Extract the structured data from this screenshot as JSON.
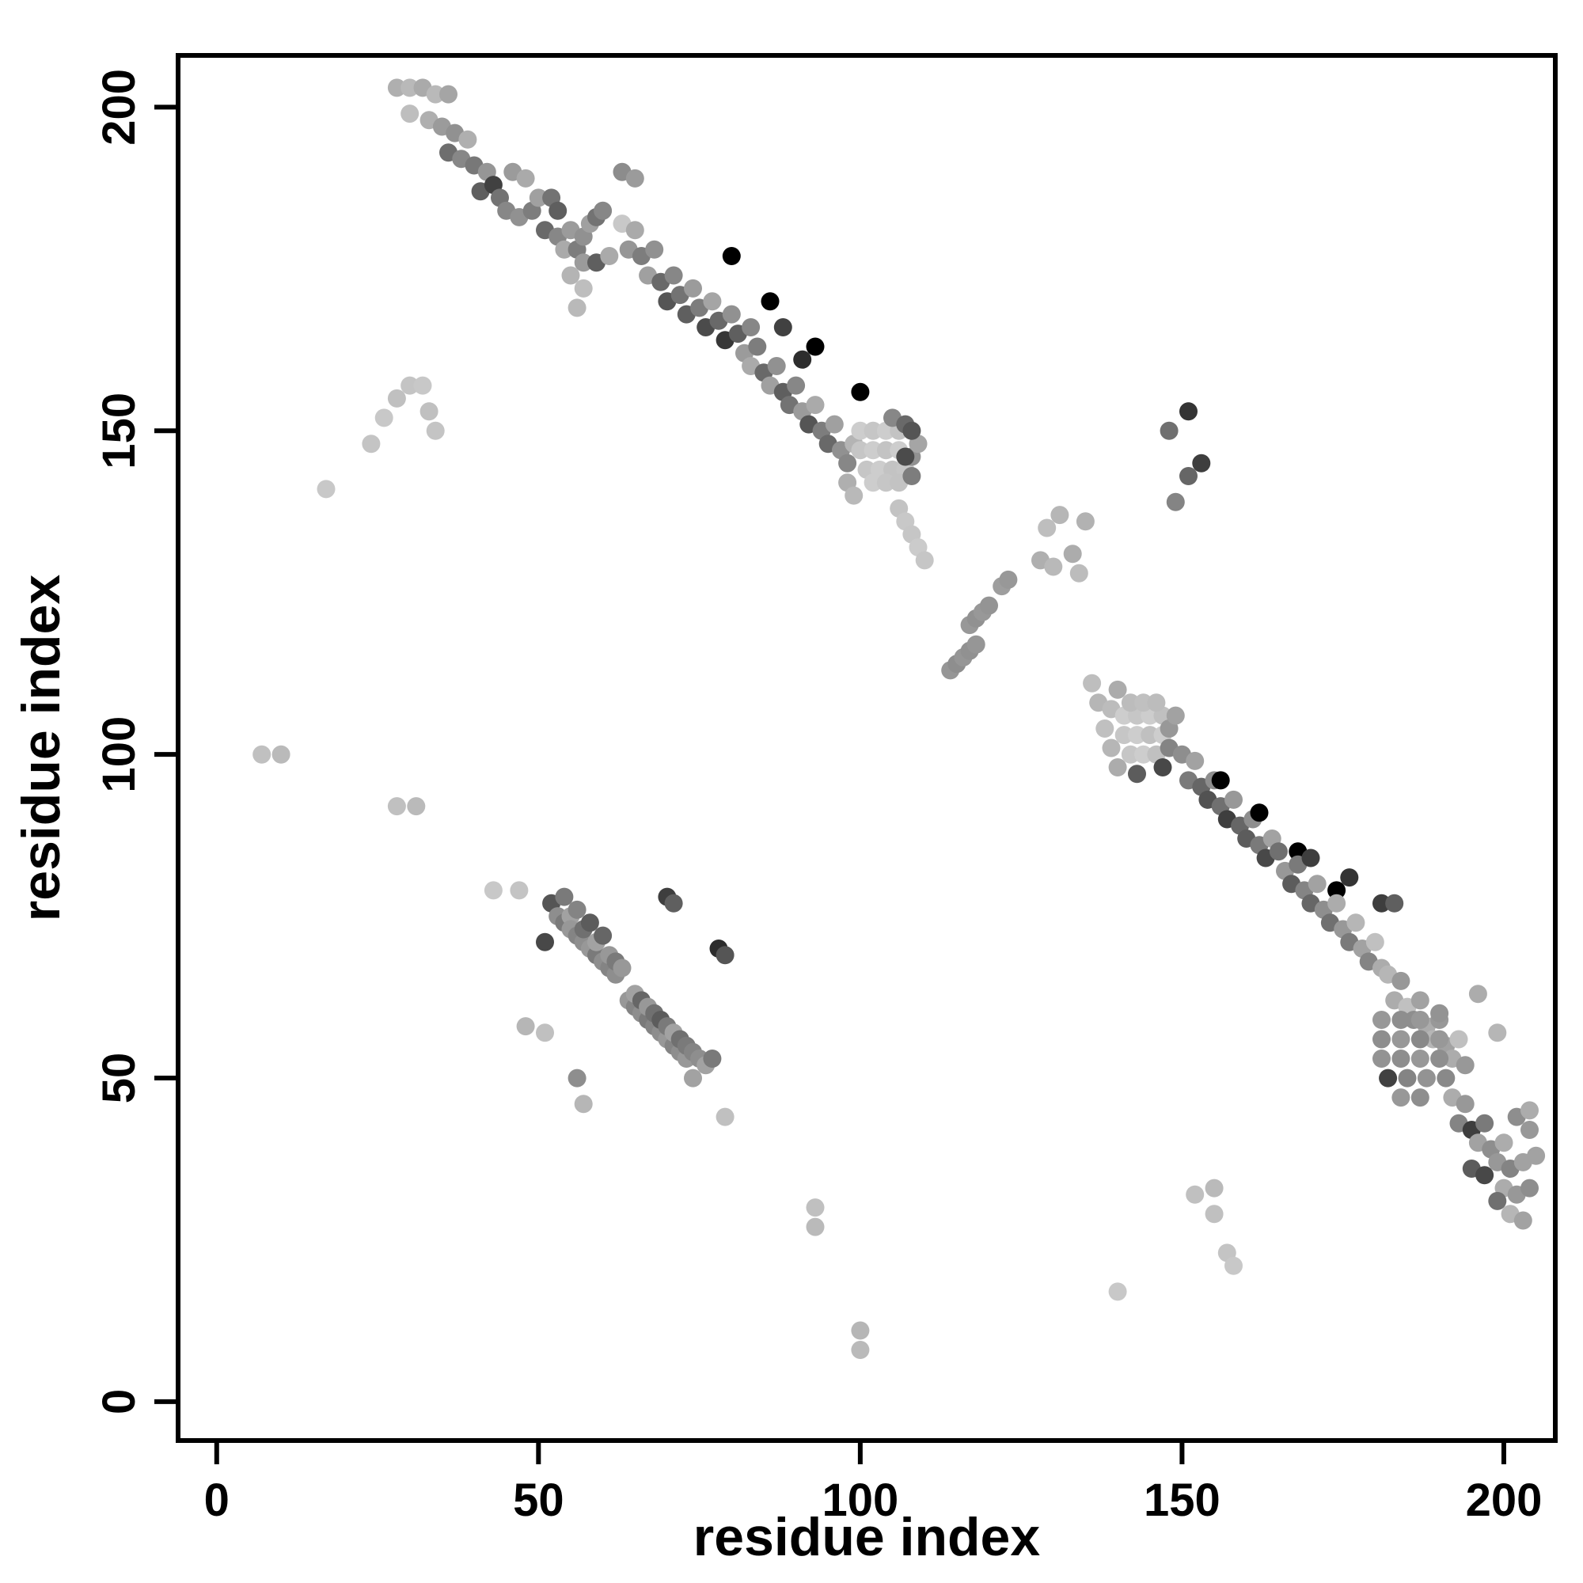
{
  "figure": {
    "title": "",
    "background": "#ffffff",
    "foreground": "#000000"
  },
  "chart_data": {
    "type": "scatter",
    "title": "",
    "xlabel": "residue index",
    "ylabel": "residue index",
    "xlim": [
      -6,
      208
    ],
    "ylim": [
      -6,
      208
    ],
    "x_ticks": [
      0,
      50,
      100,
      150,
      200
    ],
    "y_ticks": [
      0,
      50,
      100,
      150,
      200
    ],
    "grid": false,
    "legend": false,
    "point_radius_px": 11.5,
    "points_format": "[x, y, gray_0_to_255]",
    "points": [
      [
        28,
        203,
        175
      ],
      [
        30,
        203,
        185
      ],
      [
        32,
        203,
        170
      ],
      [
        34,
        202,
        185
      ],
      [
        36,
        202,
        165
      ],
      [
        30,
        199,
        190
      ],
      [
        33,
        198,
        175
      ],
      [
        35,
        197,
        155
      ],
      [
        37,
        196,
        145
      ],
      [
        39,
        195,
        175
      ],
      [
        36,
        193,
        110
      ],
      [
        38,
        192,
        135
      ],
      [
        40,
        191,
        120
      ],
      [
        42,
        190,
        150
      ],
      [
        41,
        187,
        95
      ],
      [
        43,
        188,
        65
      ],
      [
        44,
        186,
        115
      ],
      [
        46,
        190,
        155
      ],
      [
        48,
        189,
        170
      ],
      [
        45,
        184,
        135
      ],
      [
        47,
        183,
        145
      ],
      [
        49,
        184,
        125
      ],
      [
        50,
        186,
        160
      ],
      [
        52,
        186,
        115
      ],
      [
        53,
        184,
        95
      ],
      [
        51,
        181,
        105
      ],
      [
        53,
        180,
        135
      ],
      [
        55,
        181,
        155
      ],
      [
        54,
        178,
        170
      ],
      [
        56,
        178,
        125
      ],
      [
        57,
        180,
        145
      ],
      [
        58,
        182,
        160
      ],
      [
        59,
        183,
        115
      ],
      [
        60,
        184,
        135
      ],
      [
        57,
        176,
        155
      ],
      [
        59,
        176,
        95
      ],
      [
        61,
        177,
        170
      ],
      [
        55,
        174,
        180
      ],
      [
        57,
        172,
        190
      ],
      [
        56,
        169,
        185
      ],
      [
        63,
        190,
        140
      ],
      [
        65,
        189,
        155
      ],
      [
        63,
        182,
        200
      ],
      [
        65,
        181,
        170
      ],
      [
        64,
        178,
        150
      ],
      [
        66,
        177,
        125
      ],
      [
        68,
        178,
        145
      ],
      [
        67,
        174,
        160
      ],
      [
        69,
        173,
        105
      ],
      [
        71,
        174,
        135
      ],
      [
        70,
        170,
        85
      ],
      [
        72,
        171,
        115
      ],
      [
        74,
        172,
        155
      ],
      [
        73,
        168,
        95
      ],
      [
        75,
        169,
        125
      ],
      [
        77,
        170,
        165
      ],
      [
        76,
        166,
        75
      ],
      [
        78,
        167,
        105
      ],
      [
        80,
        168,
        145
      ],
      [
        79,
        164,
        55
      ],
      [
        81,
        165,
        95
      ],
      [
        83,
        166,
        135
      ],
      [
        80,
        177,
        0
      ],
      [
        86,
        170,
        0
      ],
      [
        93,
        163,
        0
      ],
      [
        100,
        156,
        0
      ],
      [
        82,
        162,
        155
      ],
      [
        84,
        163,
        125
      ],
      [
        83,
        160,
        170
      ],
      [
        85,
        159,
        105
      ],
      [
        87,
        160,
        145
      ],
      [
        86,
        157,
        160
      ],
      [
        88,
        156,
        95
      ],
      [
        90,
        157,
        135
      ],
      [
        89,
        154,
        115
      ],
      [
        91,
        153,
        155
      ],
      [
        93,
        154,
        170
      ],
      [
        92,
        151,
        85
      ],
      [
        94,
        150,
        125
      ],
      [
        96,
        151,
        160
      ],
      [
        95,
        148,
        105
      ],
      [
        97,
        147,
        145
      ],
      [
        99,
        148,
        180
      ],
      [
        98,
        145,
        135
      ],
      [
        88,
        166,
        65
      ],
      [
        91,
        161,
        45
      ],
      [
        100,
        150,
        205
      ],
      [
        102,
        150,
        198
      ],
      [
        104,
        150,
        205
      ],
      [
        106,
        150,
        195
      ],
      [
        100,
        147,
        198
      ],
      [
        102,
        147,
        205
      ],
      [
        104,
        147,
        195
      ],
      [
        106,
        147,
        205
      ],
      [
        101,
        144,
        198
      ],
      [
        103,
        144,
        205
      ],
      [
        105,
        144,
        195
      ],
      [
        107,
        144,
        198
      ],
      [
        102,
        142,
        205
      ],
      [
        104,
        142,
        198
      ],
      [
        106,
        142,
        195
      ],
      [
        108,
        146,
        145
      ],
      [
        108,
        143,
        125
      ],
      [
        109,
        148,
        165
      ],
      [
        98,
        142,
        175
      ],
      [
        99,
        140,
        185
      ],
      [
        105,
        152,
        135
      ],
      [
        107,
        151,
        105
      ],
      [
        108,
        150,
        85
      ],
      [
        107,
        146,
        75
      ],
      [
        106,
        138,
        195
      ],
      [
        107,
        136,
        200
      ],
      [
        108,
        134,
        198
      ],
      [
        109,
        132,
        203
      ],
      [
        110,
        130,
        198
      ],
      [
        114,
        113,
        150
      ],
      [
        115,
        114,
        142
      ],
      [
        116,
        115,
        150
      ],
      [
        117,
        116,
        145
      ],
      [
        118,
        117,
        150
      ],
      [
        117,
        120,
        152
      ],
      [
        118,
        121,
        145
      ],
      [
        119,
        122,
        152
      ],
      [
        120,
        123,
        148
      ],
      [
        122,
        126,
        158
      ],
      [
        123,
        127,
        152
      ],
      [
        128,
        130,
        175
      ],
      [
        130,
        129,
        185
      ],
      [
        129,
        135,
        190
      ],
      [
        131,
        137,
        182
      ],
      [
        133,
        131,
        172
      ],
      [
        134,
        128,
        188
      ],
      [
        135,
        136,
        178
      ],
      [
        136,
        111,
        190
      ],
      [
        137,
        108,
        182
      ],
      [
        139,
        107,
        188
      ],
      [
        140,
        110,
        172
      ],
      [
        138,
        104,
        192
      ],
      [
        141,
        106,
        205
      ],
      [
        143,
        106,
        198
      ],
      [
        145,
        106,
        205
      ],
      [
        147,
        106,
        192
      ],
      [
        141,
        103,
        198
      ],
      [
        143,
        103,
        205
      ],
      [
        145,
        103,
        192
      ],
      [
        147,
        103,
        205
      ],
      [
        142,
        100,
        198
      ],
      [
        144,
        100,
        205
      ],
      [
        146,
        100,
        192
      ],
      [
        142,
        108,
        188
      ],
      [
        144,
        108,
        192
      ],
      [
        146,
        108,
        188
      ],
      [
        148,
        104,
        152
      ],
      [
        148,
        101,
        132
      ],
      [
        149,
        106,
        162
      ],
      [
        140,
        98,
        172
      ],
      [
        139,
        101,
        182
      ],
      [
        143,
        97,
        92
      ],
      [
        147,
        98,
        72
      ],
      [
        150,
        100,
        142
      ],
      [
        152,
        99,
        162
      ],
      [
        151,
        96,
        122
      ],
      [
        153,
        95,
        102
      ],
      [
        155,
        96,
        142
      ],
      [
        154,
        93,
        82
      ],
      [
        156,
        92,
        112
      ],
      [
        158,
        93,
        152
      ],
      [
        157,
        90,
        62
      ],
      [
        159,
        89,
        102
      ],
      [
        161,
        90,
        142
      ],
      [
        160,
        87,
        92
      ],
      [
        162,
        86,
        122
      ],
      [
        164,
        87,
        162
      ],
      [
        163,
        84,
        72
      ],
      [
        165,
        85,
        112
      ],
      [
        156,
        96,
        0
      ],
      [
        162,
        91,
        0
      ],
      [
        168,
        85,
        0
      ],
      [
        174,
        79,
        0
      ],
      [
        166,
        82,
        152
      ],
      [
        168,
        83,
        122
      ],
      [
        167,
        80,
        92
      ],
      [
        169,
        79,
        132
      ],
      [
        171,
        80,
        162
      ],
      [
        170,
        77,
        102
      ],
      [
        172,
        76,
        142
      ],
      [
        174,
        77,
        172
      ],
      [
        173,
        74,
        112
      ],
      [
        175,
        73,
        152
      ],
      [
        177,
        74,
        182
      ],
      [
        176,
        71,
        122
      ],
      [
        178,
        70,
        162
      ],
      [
        180,
        71,
        192
      ],
      [
        179,
        68,
        132
      ],
      [
        181,
        67,
        172
      ],
      [
        170,
        84,
        62
      ],
      [
        176,
        81,
        52
      ],
      [
        181,
        77,
        62
      ],
      [
        183,
        77,
        95
      ],
      [
        182,
        66,
        182
      ],
      [
        184,
        65,
        152
      ],
      [
        183,
        62,
        172
      ],
      [
        185,
        61,
        192
      ],
      [
        187,
        62,
        162
      ],
      [
        186,
        59,
        142
      ],
      [
        188,
        58,
        172
      ],
      [
        190,
        59,
        152
      ],
      [
        189,
        56,
        182
      ],
      [
        191,
        55,
        162
      ],
      [
        193,
        56,
        192
      ],
      [
        192,
        53,
        172
      ],
      [
        194,
        52,
        152
      ],
      [
        181,
        59,
        152
      ],
      [
        184,
        59,
        142
      ],
      [
        187,
        59,
        152
      ],
      [
        190,
        60,
        147
      ],
      [
        181,
        56,
        142
      ],
      [
        184,
        56,
        152
      ],
      [
        187,
        56,
        137
      ],
      [
        190,
        56,
        152
      ],
      [
        181,
        53,
        147
      ],
      [
        184,
        53,
        142
      ],
      [
        187,
        53,
        152
      ],
      [
        190,
        53,
        142
      ],
      [
        182,
        50,
        65
      ],
      [
        185,
        50,
        132
      ],
      [
        188,
        50,
        147
      ],
      [
        191,
        50,
        137
      ],
      [
        184,
        47,
        152
      ],
      [
        187,
        47,
        142
      ],
      [
        196,
        63,
        172
      ],
      [
        199,
        57,
        182
      ],
      [
        192,
        47,
        172
      ],
      [
        194,
        46,
        152
      ],
      [
        193,
        43,
        132
      ],
      [
        195,
        42,
        62
      ],
      [
        197,
        43,
        122
      ],
      [
        196,
        40,
        162
      ],
      [
        198,
        39,
        142
      ],
      [
        200,
        40,
        172
      ],
      [
        199,
        37,
        152
      ],
      [
        201,
        36,
        132
      ],
      [
        203,
        37,
        162
      ],
      [
        200,
        33,
        172
      ],
      [
        202,
        32,
        152
      ],
      [
        204,
        33,
        142
      ],
      [
        201,
        29,
        182
      ],
      [
        203,
        28,
        162
      ],
      [
        195,
        36,
        92
      ],
      [
        197,
        35,
        72
      ],
      [
        199,
        31,
        112
      ],
      [
        204,
        42,
        152
      ],
      [
        205,
        38,
        162
      ],
      [
        202,
        44,
        142
      ],
      [
        204,
        45,
        172
      ],
      [
        17,
        141,
        200
      ],
      [
        24,
        148,
        196
      ],
      [
        26,
        152,
        200
      ],
      [
        28,
        155,
        192
      ],
      [
        30,
        157,
        196
      ],
      [
        32,
        157,
        200
      ],
      [
        33,
        153,
        192
      ],
      [
        34,
        150,
        196
      ],
      [
        7,
        100,
        192
      ],
      [
        10,
        100,
        186
      ],
      [
        28,
        92,
        192
      ],
      [
        31,
        92,
        186
      ],
      [
        43,
        79,
        200
      ],
      [
        47,
        79,
        196
      ],
      [
        52,
        77,
        85
      ],
      [
        54,
        78,
        122
      ],
      [
        53,
        75,
        142
      ],
      [
        54,
        74,
        122
      ],
      [
        55,
        75,
        162
      ],
      [
        55,
        73,
        152
      ],
      [
        56,
        72,
        132
      ],
      [
        56,
        76,
        132
      ],
      [
        57,
        71,
        142
      ],
      [
        57,
        73,
        112
      ],
      [
        58,
        70,
        152
      ],
      [
        58,
        74,
        92
      ],
      [
        59,
        69,
        122
      ],
      [
        59,
        71,
        162
      ],
      [
        60,
        68,
        142
      ],
      [
        60,
        72,
        102
      ],
      [
        61,
        67,
        132
      ],
      [
        61,
        69,
        152
      ],
      [
        62,
        66,
        142
      ],
      [
        62,
        68,
        122
      ],
      [
        63,
        67,
        152
      ],
      [
        51,
        71,
        72
      ],
      [
        64,
        62,
        152
      ],
      [
        65,
        61,
        132
      ],
      [
        65,
        63,
        162
      ],
      [
        66,
        60,
        142
      ],
      [
        66,
        62,
        102
      ],
      [
        67,
        59,
        122
      ],
      [
        67,
        61,
        152
      ],
      [
        68,
        58,
        132
      ],
      [
        68,
        60,
        112
      ],
      [
        69,
        57,
        142
      ],
      [
        69,
        59,
        92
      ],
      [
        70,
        56,
        152
      ],
      [
        70,
        58,
        122
      ],
      [
        71,
        55,
        132
      ],
      [
        71,
        57,
        162
      ],
      [
        72,
        54,
        142
      ],
      [
        72,
        56,
        112
      ],
      [
        73,
        53,
        152
      ],
      [
        73,
        55,
        122
      ],
      [
        74,
        54,
        132
      ],
      [
        75,
        53,
        142
      ],
      [
        76,
        52,
        162
      ],
      [
        48,
        58,
        182
      ],
      [
        51,
        57,
        192
      ],
      [
        56,
        50,
        142
      ],
      [
        57,
        46,
        182
      ],
      [
        70,
        78,
        62
      ],
      [
        71,
        77,
        95
      ],
      [
        78,
        70,
        45
      ],
      [
        79,
        69,
        85
      ],
      [
        77,
        53,
        122
      ],
      [
        74,
        50,
        162
      ],
      [
        79,
        44,
        192
      ],
      [
        93,
        30,
        192
      ],
      [
        93,
        27,
        186
      ],
      [
        100,
        11,
        182
      ],
      [
        100,
        8,
        186
      ],
      [
        140,
        17,
        200
      ],
      [
        152,
        32,
        192
      ],
      [
        155,
        33,
        186
      ],
      [
        155,
        29,
        192
      ],
      [
        157,
        23,
        196
      ],
      [
        158,
        21,
        200
      ],
      [
        151,
        153,
        52
      ],
      [
        148,
        150,
        112
      ],
      [
        153,
        145,
        62
      ],
      [
        151,
        143,
        102
      ],
      [
        149,
        139,
        132
      ]
    ]
  }
}
